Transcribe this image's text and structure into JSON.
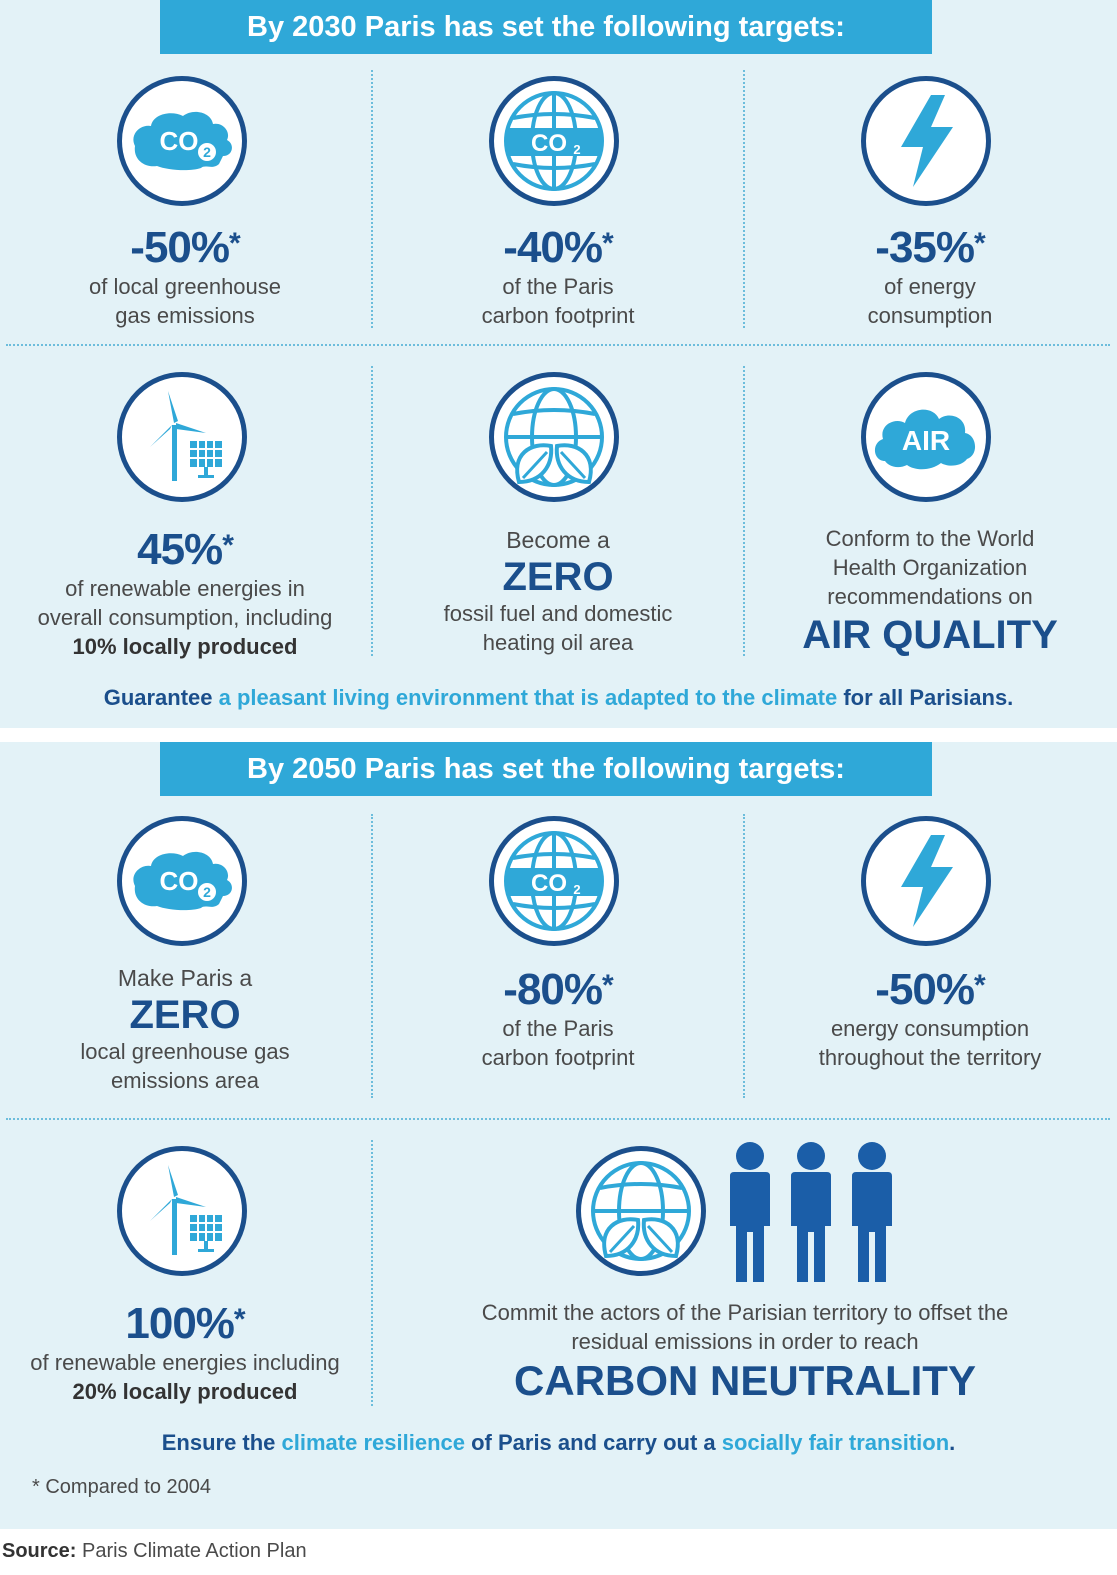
{
  "section2030": {
    "banner": "By 2030 Paris has set the following targets:",
    "t1": {
      "value": "-50%",
      "star": "*",
      "line1": "of local greenhouse",
      "line2": "gas emissions"
    },
    "t2": {
      "value": "-40%",
      "star": "*",
      "line1": "of the Paris",
      "line2": "carbon footprint"
    },
    "t3": {
      "value": "-35%",
      "star": "*",
      "line1": "of energy",
      "line2": "consumption"
    },
    "t4": {
      "value": "45%",
      "star": "*",
      "line1": "of renewable energies in",
      "line2": "overall consumption, including",
      "line3": "10% locally produced"
    },
    "t5": {
      "pre": "Become a",
      "big": "ZERO",
      "line1": "fossil fuel and domestic",
      "line2": "heating oil area"
    },
    "t6": {
      "line1": "Conform to the World",
      "line2": "Health Organization",
      "line3": "recommendations on",
      "big": "AIR QUALITY",
      "icon_label": "AIR"
    },
    "tagline": {
      "p1": "Guarantee ",
      "p2": "a pleasant living environment that is adapted to the climate",
      "p3": " for all Parisians."
    }
  },
  "section2050": {
    "banner": "By 2050 Paris has set the following targets:",
    "t1": {
      "pre": "Make Paris a",
      "big": "ZERO",
      "line1": "local greenhouse gas",
      "line2": "emissions area"
    },
    "t2": {
      "value": "-80%",
      "star": "*",
      "line1": "of the Paris",
      "line2": "carbon footprint"
    },
    "t3": {
      "value": "-50%",
      "star": "*",
      "line1": "energy consumption",
      "line2": "throughout the territory"
    },
    "t4": {
      "value": "100%",
      "star": "*",
      "line1": "of renewable energies including",
      "line2": "20% locally produced"
    },
    "t5": {
      "line1": "Commit the actors of the Parisian territory to offset the",
      "line2": "residual emissions in order to reach",
      "big": "CARBON NEUTRALITY"
    },
    "tagline": {
      "p1": "Ensure the ",
      "p2": "climate resilience",
      "p3": " of Paris and carry out a ",
      "p4": "socially fair transition",
      "p5": "."
    }
  },
  "icons": {
    "co2_label": "CO",
    "co2_sub": "2"
  },
  "footnote": "* Compared to 2004",
  "source": {
    "label": "Source:",
    "text": " Paris Climate Action Plan"
  },
  "colors": {
    "navy": "#1b4f8c",
    "cyan": "#2fa8d8",
    "panel": "#e3f2f7"
  }
}
